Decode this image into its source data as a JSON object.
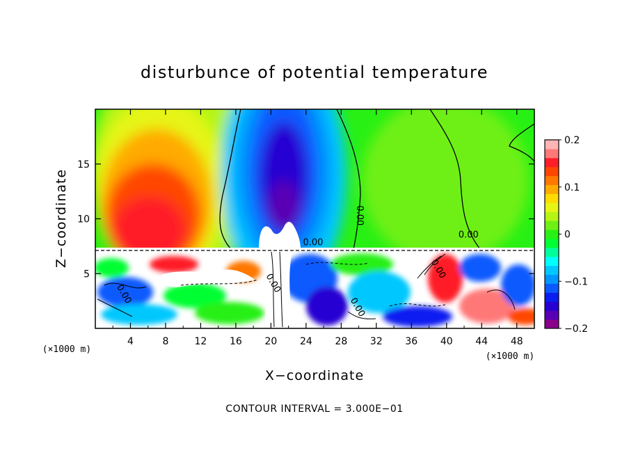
{
  "chart_data": {
    "type": "heatmap",
    "title": "disturbunce of potential temperature",
    "xlabel": "X−coordinate",
    "ylabel": "Z−coordinate",
    "x_unit": "(×1000 m)",
    "z_unit": "(×1000 m)",
    "xlim": [
      0,
      50
    ],
    "zlim": [
      0,
      20
    ],
    "x_ticks": [
      4,
      8,
      12,
      16,
      20,
      24,
      28,
      32,
      36,
      40,
      44,
      48
    ],
    "z_ticks": [
      5,
      10,
      15
    ],
    "interface_z": 7.3,
    "colorbar": {
      "min": -0.2,
      "max": 0.2,
      "tick_values": [
        0.2,
        0.1,
        0,
        -0.1,
        -0.2
      ],
      "tick_labels": [
        "0.2",
        "0.1",
        "0",
        "−0.1",
        "−0.2"
      ],
      "colors": [
        "#8b008b",
        "#5a00b4",
        "#2800d2",
        "#0a1ef0",
        "#0a5aff",
        "#0096ff",
        "#00c8ff",
        "#00ffff",
        "#00ff9b",
        "#00ff32",
        "#28f014",
        "#6ef014",
        "#b4f514",
        "#e6f514",
        "#ffdc00",
        "#ffaa00",
        "#ff7800",
        "#ff4600",
        "#ff1e28",
        "#ff7878",
        "#ffb4b4"
      ]
    },
    "contour_labels": [
      {
        "text": "0.00",
        "x": 24.8,
        "z": 7.6
      },
      {
        "text": "0.00",
        "x": 29.8,
        "z": 10.3
      },
      {
        "text": "0.00",
        "x": 42.5,
        "z": 8.3
      },
      {
        "text": "0.00",
        "x": 3.0,
        "z": 3.0
      },
      {
        "text": "0.00",
        "x": 20.0,
        "z": 4.0
      },
      {
        "text": "0.00",
        "x": 29.6,
        "z": 1.8
      },
      {
        "text": "0.00",
        "x": 38.8,
        "z": 5.3
      }
    ],
    "annotation": "CONTOUR INTERVAL = 3.000E−01"
  }
}
